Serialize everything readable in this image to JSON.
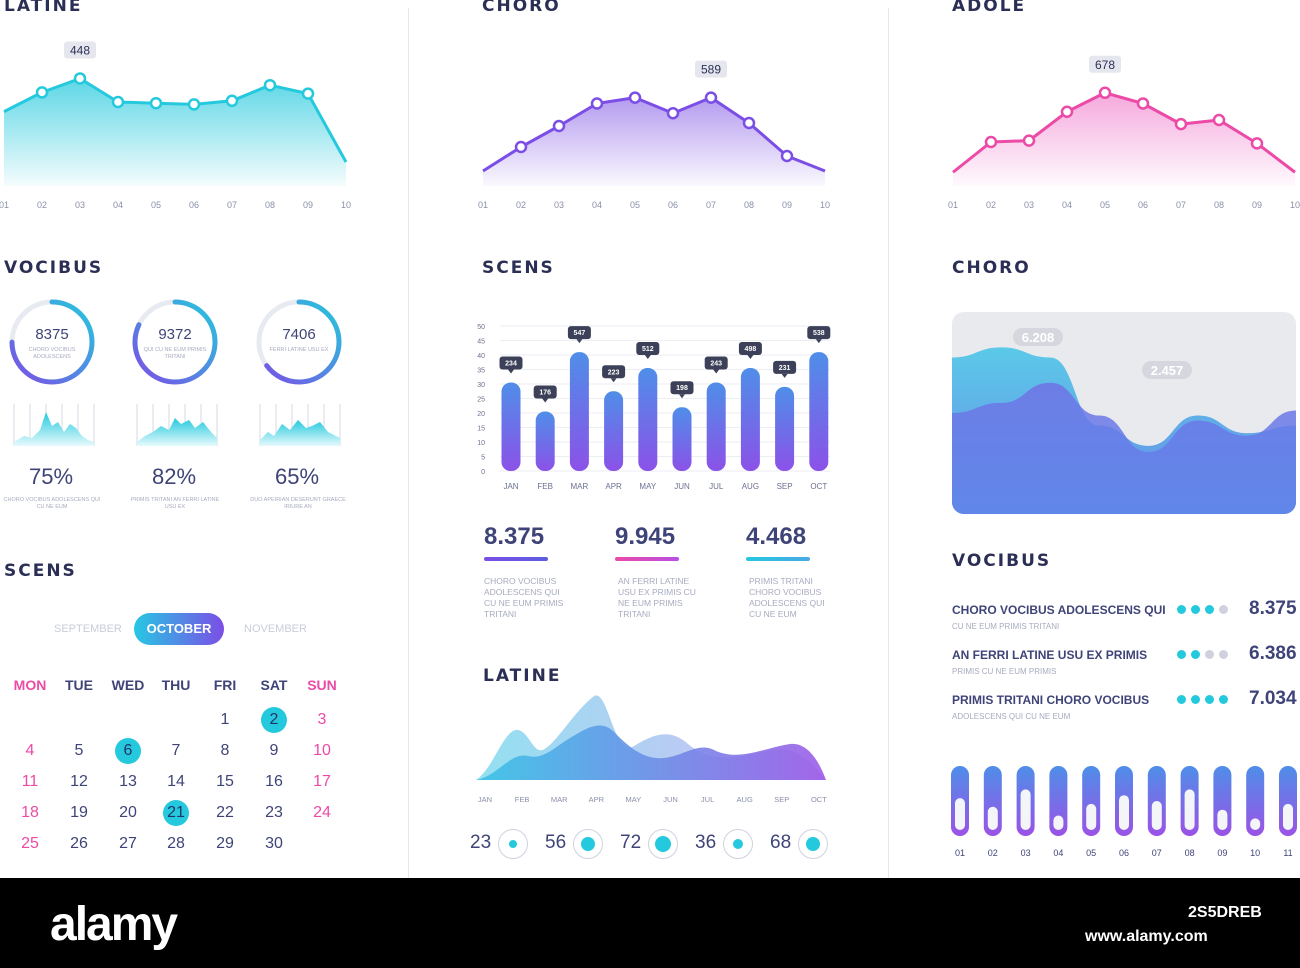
{
  "colors": {
    "cyan": "#25c9dd",
    "purple": "#7b4ee6",
    "pink": "#ec4aa7",
    "text": "#3f4478",
    "muted": "#a7abbf"
  },
  "col1": {
    "line_title": "LATINE",
    "rings_title": "VOCIBUS",
    "rings": [
      {
        "value": "8375",
        "sub": "CHORO VOCIBUS ADOLESCENS"
      },
      {
        "value": "9372",
        "sub": "QUI CU NE EUM PRIMIS TRITANI"
      },
      {
        "value": "7406",
        "sub": "FERRI LATINE USU EX"
      }
    ],
    "percents": [
      {
        "value": "75%",
        "sub": "CHORO VOCIBUS ADOLESCENS QUI CU NE EUM"
      },
      {
        "value": "82%",
        "sub": "PRIMIS TRITANI AN FERRI LATINE USU EX"
      },
      {
        "value": "65%",
        "sub": "DUO APEIRIAN DESERUNT GRAECE IRIURE AN"
      }
    ],
    "calendar_title": "SCENS",
    "months": [
      "SEPTEMBER",
      "OCTOBER",
      "NOVEMBER"
    ],
    "weekdays": [
      "MON",
      "TUE",
      "WED",
      "THU",
      "FRI",
      "SAT",
      "SUN"
    ],
    "days": [
      "1",
      "2",
      "3",
      "4",
      "5",
      "6",
      "7",
      "8",
      "9",
      "10",
      "11",
      "12",
      "13",
      "14",
      "15",
      "16",
      "17",
      "18",
      "19",
      "20",
      "21",
      "22",
      "23",
      "24",
      "25",
      "26",
      "27",
      "28",
      "29",
      "30"
    ]
  },
  "col2": {
    "line_title": "CHORO",
    "bar_title": "SCENS",
    "stats": [
      {
        "value": "8.375",
        "sub": "CHORO VOCIBUS ADOLESCENS QUI CU NE EUM PRIMIS TRITANI"
      },
      {
        "value": "9.945",
        "sub": "AN FERRI LATINE USU EX PRIMIS CU NE EUM PRIMIS TRITANI"
      },
      {
        "value": "4.468",
        "sub": "PRIMIS TRITANI CHORO VOCIBUS ADOLESCENS QUI CU NE EUM"
      }
    ],
    "area_title": "LATINE",
    "area_months": [
      "JAN",
      "FEB",
      "MAR",
      "APR",
      "MAY",
      "JUN",
      "JUL",
      "AUG",
      "SEP",
      "OCT"
    ],
    "circles": [
      "23",
      "56",
      "72",
      "36",
      "68"
    ]
  },
  "col3": {
    "line_title": "ADOLE",
    "wave_title": "CHORO",
    "list_title": "VOCIBUS",
    "list": [
      {
        "title": "CHORO VOCIBUS ADOLESCENS QUI",
        "sub": "CU NE EUM PRIMIS TRITANI",
        "value": "8.375",
        "filled": 3
      },
      {
        "title": "AN FERRI LATINE USU EX PRIMIS",
        "sub": "PRIMIS CU NE EUM PRIMIS",
        "value": "6.386",
        "filled": 2
      },
      {
        "title": "PRIMIS TRITANI CHORO VOCIBUS",
        "sub": "ADOLESCENS QUI CU NE EUM",
        "value": "7.034",
        "filled": 4
      }
    ],
    "vbar_labels": [
      "01",
      "02",
      "03",
      "04",
      "05",
      "06",
      "07",
      "08",
      "09",
      "10",
      "11"
    ]
  },
  "footer": {
    "logo": "alamy",
    "id": "2S5DREB",
    "url": "www.alamy.com"
  },
  "chart_data": [
    {
      "type": "line",
      "title": "LATINE",
      "x": [
        "01",
        "02",
        "03",
        "04",
        "05",
        "06",
        "07",
        "08",
        "09",
        "10"
      ],
      "values": [
        310,
        390,
        448,
        350,
        345,
        340,
        355,
        420,
        385,
        100
      ],
      "annotation": {
        "x": "03",
        "label": "448"
      },
      "ylim": [
        0,
        500
      ]
    },
    {
      "type": "line",
      "title": "CHORO",
      "x": [
        "01",
        "02",
        "03",
        "04",
        "05",
        "06",
        "07",
        "08",
        "09",
        "10"
      ],
      "values": [
        100,
        260,
        400,
        550,
        589,
        485,
        589,
        420,
        200,
        100
      ],
      "annotation": {
        "x": "07",
        "label": "589"
      },
      "ylim": [
        0,
        700
      ]
    },
    {
      "type": "line",
      "title": "ADOLE",
      "x": [
        "01",
        "02",
        "03",
        "04",
        "05",
        "06",
        "07",
        "08",
        "09",
        "10"
      ],
      "values": [
        100,
        320,
        330,
        540,
        678,
        600,
        450,
        480,
        310,
        100
      ],
      "annotation": {
        "x": "05",
        "label": "678"
      },
      "ylim": [
        0,
        800
      ]
    },
    {
      "type": "bar",
      "title": "SCENS",
      "categories": [
        "JAN",
        "FEB",
        "MAR",
        "APR",
        "MAY",
        "JUN",
        "JUL",
        "AUG",
        "SEP",
        "OCT"
      ],
      "values": [
        30.5,
        20.5,
        41,
        27.5,
        35.5,
        22,
        30.5,
        35.5,
        29,
        41
      ],
      "labels": [
        "234",
        "176",
        "547",
        "223",
        "512",
        "198",
        "243",
        "498",
        "231",
        "538"
      ],
      "yticks": [
        0,
        5,
        10,
        15,
        20,
        25,
        30,
        35,
        40,
        45,
        50
      ],
      "ylim": [
        0,
        50
      ]
    },
    {
      "type": "area",
      "title": "LATINE",
      "categories": [
        "JAN",
        "FEB",
        "MAR",
        "APR",
        "MAY",
        "JUN",
        "JUL",
        "AUG",
        "SEP",
        "OCT"
      ],
      "series": [
        {
          "values": [
            10,
            24,
            18,
            42,
            22,
            12,
            14,
            16,
            12,
            8
          ]
        },
        {
          "values": [
            12,
            18,
            28,
            26,
            20,
            16,
            20,
            22,
            24,
            12
          ]
        }
      ]
    },
    {
      "type": "area",
      "title": "CHORO",
      "series": [
        {
          "values": [
            6.2,
            6.6,
            6.2,
            3.5,
            2.7,
            3.9,
            3.2,
            3.5
          ]
        },
        {
          "values": [
            4.0,
            4.4,
            5.2,
            3.9,
            2.457,
            3.7,
            3.1,
            4.1
          ]
        }
      ],
      "annotations": [
        "6.208",
        "2.457"
      ]
    },
    {
      "type": "bar",
      "title": "VOCIBUS",
      "categories": [
        "01",
        "02",
        "03",
        "04",
        "05",
        "06",
        "07",
        "08",
        "09",
        "10",
        "11"
      ],
      "values": [
        0.45,
        0.6,
        0.3,
        0.75,
        0.55,
        0.4,
        0.5,
        0.3,
        0.65,
        0.8,
        0.55
      ],
      "ylim": [
        0,
        1
      ]
    }
  ]
}
